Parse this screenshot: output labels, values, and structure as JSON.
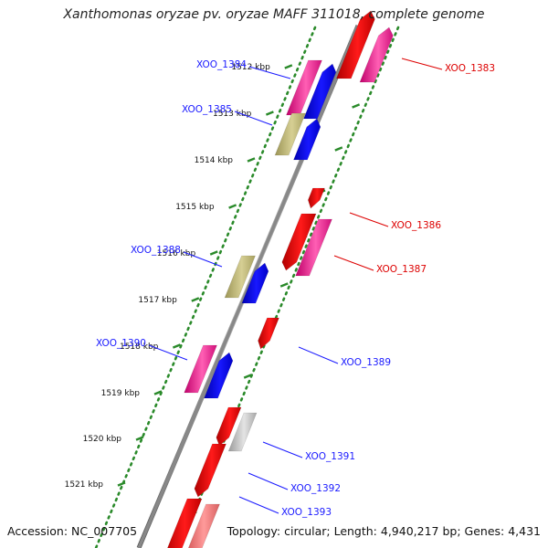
{
  "title": "Xanthomonas oryzae pv. oryzae MAFF 311018, complete genome",
  "footer": {
    "accession": "Accession: NC_007705",
    "summary": "Topology: circular; Length: 4,940,217 bp; Genes: 4,431"
  },
  "colors": {
    "forward_label": "#1a1aff",
    "reverse_label": "#dd0000",
    "backbone": "#888888",
    "guide_dots": "#2a8a2a"
  },
  "kbp_ticks": [
    "1512 kbp",
    "1513 kbp",
    "1514 kbp",
    "1515 kbp",
    "1516 kbp",
    "1517 kbp",
    "1518 kbp",
    "1519 kbp",
    "1520 kbp",
    "1521 kbp"
  ],
  "features": [
    {
      "label": "XOO_1383",
      "strand": "reverse",
      "color": "pink"
    },
    {
      "label": "XOO_1384",
      "strand": "forward",
      "color": "pink"
    },
    {
      "label": "XOO_1385",
      "strand": "forward",
      "color": "olive"
    },
    {
      "label": "XOO_1386",
      "strand": "reverse",
      "color": "red"
    },
    {
      "label": "XOO_1387",
      "strand": "reverse",
      "color": "pink"
    },
    {
      "label": "XOO_1388",
      "strand": "forward",
      "color": "olive"
    },
    {
      "label": "XOO_1389",
      "strand": "forward",
      "color": "red"
    },
    {
      "label": "XOO_1390",
      "strand": "forward",
      "color": "pink"
    },
    {
      "label": "XOO_1391",
      "strand": "forward",
      "color": "gray"
    },
    {
      "label": "XOO_1392",
      "strand": "forward",
      "color": "red"
    },
    {
      "label": "XOO_1393",
      "strand": "forward",
      "color": "pink"
    }
  ]
}
